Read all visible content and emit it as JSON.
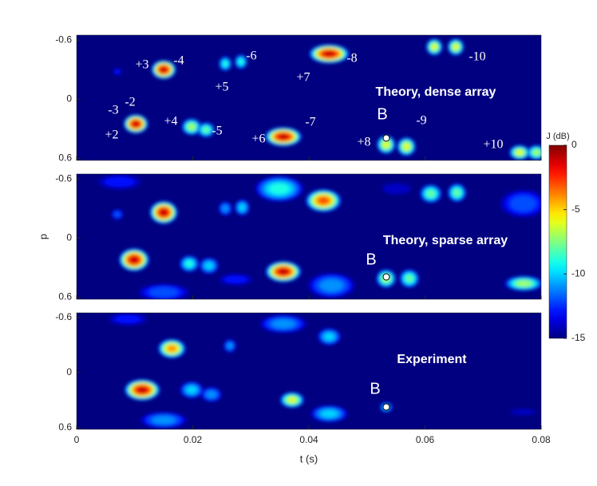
{
  "chart_data": [
    {
      "type": "heatmap",
      "title": "Theory, dense array",
      "annotations": [
        "+3",
        "-4",
        "-6",
        "+5",
        "-8",
        "+7",
        "-10",
        "-3",
        "-2",
        "+2",
        "+4",
        "-5",
        "+6",
        "-7",
        "-9",
        "+8",
        "+10",
        "B"
      ],
      "xlim": [
        0,
        0.08
      ],
      "ylim": [
        -0.65,
        0.62
      ],
      "yticks": [
        -0.6,
        0,
        0.6
      ],
      "spots": [
        [
          0.015,
          -0.3,
          0,
          0.0022,
          0.1
        ],
        [
          0.007,
          -0.28,
          -12,
          0.001,
          0.04
        ],
        [
          0.0256,
          -0.36,
          -8,
          0.0012,
          0.08
        ],
        [
          0.0283,
          -0.38,
          -8,
          0.0012,
          0.08
        ],
        [
          0.0435,
          -0.46,
          0,
          0.0036,
          0.1
        ],
        [
          0.0616,
          -0.53,
          -5,
          0.0015,
          0.09
        ],
        [
          0.0653,
          -0.53,
          -5,
          0.0015,
          0.09
        ],
        [
          0.0102,
          0.25,
          0,
          0.0022,
          0.1
        ],
        [
          0.0198,
          0.28,
          -6,
          0.0018,
          0.09
        ],
        [
          0.0223,
          0.31,
          -7,
          0.0016,
          0.08
        ],
        [
          0.0356,
          0.38,
          0,
          0.0033,
          0.1
        ],
        [
          0.0533,
          0.46,
          -5,
          0.0017,
          0.1
        ],
        [
          0.0568,
          0.48,
          -5,
          0.0017,
          0.1
        ],
        [
          0.0763,
          0.54,
          -5,
          0.0019,
          0.08
        ],
        [
          0.0792,
          0.54,
          -6,
          0.0017,
          0.08
        ]
      ]
    },
    {
      "type": "heatmap",
      "title": "Theory, sparse array",
      "ylabel": "p",
      "annotations": [
        "B"
      ],
      "xlim": [
        0,
        0.08
      ],
      "ylim": [
        -0.65,
        0.62
      ],
      "yticks": [
        -0.6,
        0,
        0.6
      ],
      "spots": [
        [
          0.0074,
          -0.57,
          -12,
          0.0045,
          0.09
        ],
        [
          0.0349,
          -0.5,
          -8,
          0.0045,
          0.14
        ],
        [
          0.0425,
          -0.38,
          -2,
          0.0032,
          0.12
        ],
        [
          0.015,
          -0.26,
          0,
          0.0025,
          0.12
        ],
        [
          0.007,
          -0.24,
          -11,
          0.0012,
          0.06
        ],
        [
          0.0256,
          -0.3,
          -10,
          0.0013,
          0.08
        ],
        [
          0.0285,
          -0.31,
          -9,
          0.0014,
          0.09
        ],
        [
          0.061,
          -0.45,
          -7,
          0.002,
          0.1
        ],
        [
          0.0655,
          -0.46,
          -7,
          0.0017,
          0.1
        ],
        [
          0.0769,
          -0.35,
          -11,
          0.0045,
          0.16
        ],
        [
          0.0551,
          -0.5,
          -13,
          0.0035,
          0.08
        ],
        [
          0.0099,
          0.22,
          0,
          0.0027,
          0.12
        ],
        [
          0.0194,
          0.26,
          -8,
          0.0018,
          0.09
        ],
        [
          0.0228,
          0.28,
          -9,
          0.0018,
          0.09
        ],
        [
          0.0356,
          0.34,
          0,
          0.0032,
          0.11
        ],
        [
          0.0439,
          0.48,
          -10,
          0.0045,
          0.14
        ],
        [
          0.0533,
          0.41,
          -6,
          0.0018,
          0.1
        ],
        [
          0.0573,
          0.41,
          -7,
          0.0018,
          0.1
        ],
        [
          0.077,
          0.46,
          -6,
          0.0035,
          0.08
        ],
        [
          0.015,
          0.55,
          -11,
          0.005,
          0.1
        ],
        [
          0.0274,
          0.42,
          -12,
          0.0035,
          0.07
        ]
      ]
    },
    {
      "type": "heatmap",
      "title": "Experiment",
      "xlabel": "t (s)",
      "annotations": [
        "B"
      ],
      "xlim": [
        0,
        0.08
      ],
      "ylim": [
        -0.65,
        0.62
      ],
      "yticks": [
        -0.6,
        0,
        0.6
      ],
      "xticks": [
        0,
        0.02,
        0.04,
        0.06,
        0.08
      ],
      "spots": [
        [
          0.0088,
          -0.58,
          -12,
          0.004,
          0.08
        ],
        [
          0.0356,
          -0.53,
          -10,
          0.0045,
          0.11
        ],
        [
          0.0435,
          -0.39,
          -9,
          0.0022,
          0.1
        ],
        [
          0.0164,
          -0.26,
          -3,
          0.0025,
          0.11
        ],
        [
          0.0264,
          -0.29,
          -10,
          0.0012,
          0.08
        ],
        [
          0.0113,
          0.19,
          0,
          0.0032,
          0.12
        ],
        [
          0.0198,
          0.19,
          -9,
          0.0022,
          0.1
        ],
        [
          0.0232,
          0.24,
          -10,
          0.002,
          0.09
        ],
        [
          0.0371,
          0.3,
          -5,
          0.0022,
          0.09
        ],
        [
          0.0435,
          0.45,
          -9,
          0.0035,
          0.1
        ],
        [
          0.015,
          0.52,
          -10,
          0.0045,
          0.1
        ],
        [
          0.0533,
          0.38,
          -9,
          0.0012,
          0.06
        ],
        [
          0.0769,
          0.43,
          -13,
          0.003,
          0.05
        ]
      ]
    }
  ],
  "colorbar": {
    "label": "J (dB)",
    "clim": [
      -15,
      0
    ],
    "ticks": [
      0,
      -5,
      -10,
      -15
    ]
  }
}
